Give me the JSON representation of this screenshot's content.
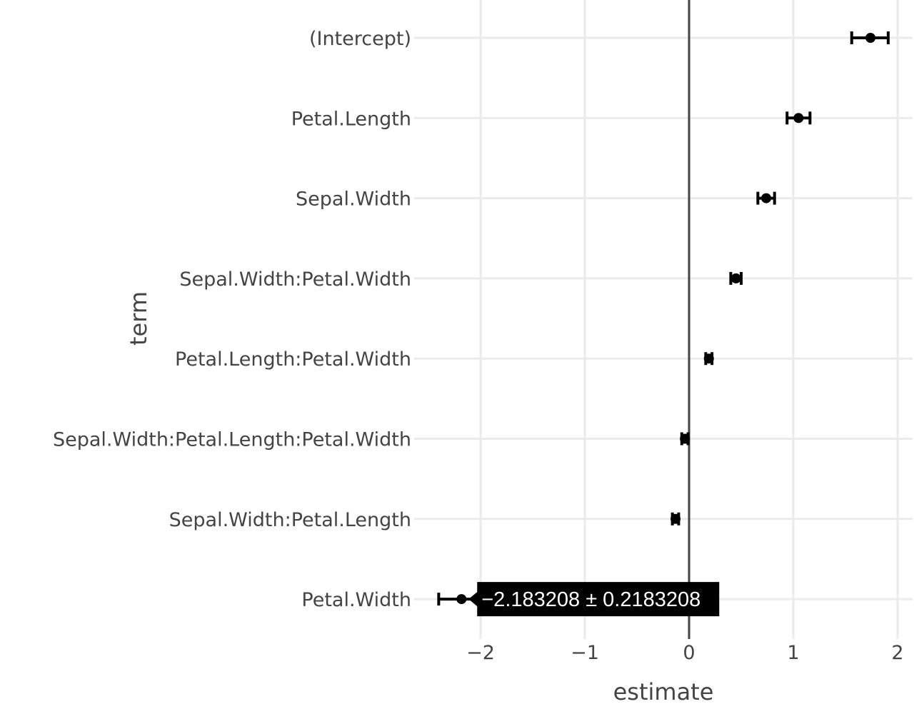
{
  "chart_data": {
    "type": "scatter",
    "orientation": "horizontal",
    "xlabel": "estimate",
    "ylabel": "term",
    "xlim": [
      -2.6,
      2.16
    ],
    "x_ticks": [
      -2,
      -1,
      0,
      1,
      2
    ],
    "x_tick_labels": [
      "−2",
      "−1",
      "0",
      "1",
      "2"
    ],
    "reference_line_x": 0,
    "grid": true,
    "points": [
      {
        "term": "(Intercept)",
        "estimate": 1.74,
        "lower": 1.56,
        "upper": 1.91
      },
      {
        "term": "Petal.Length",
        "estimate": 1.05,
        "lower": 0.94,
        "upper": 1.16
      },
      {
        "term": "Sepal.Width",
        "estimate": 0.74,
        "lower": 0.66,
        "upper": 0.82
      },
      {
        "term": "Sepal.Width:Petal.Width",
        "estimate": 0.45,
        "lower": 0.4,
        "upper": 0.5
      },
      {
        "term": "Petal.Length:Petal.Width",
        "estimate": 0.19,
        "lower": 0.16,
        "upper": 0.22
      },
      {
        "term": "Sepal.Width:Petal.Length:Petal.Width",
        "estimate": -0.04,
        "lower": -0.07,
        "upper": -0.01
      },
      {
        "term": "Sepal.Width:Petal.Length",
        "estimate": -0.13,
        "lower": -0.16,
        "upper": -0.1
      },
      {
        "term": "Petal.Width",
        "estimate": -2.183208,
        "lower": -2.4015288,
        "upper": -1.9648872
      }
    ],
    "tooltip": {
      "term": "Petal.Width",
      "text": "−2.183208 ± 0.2183208"
    }
  }
}
